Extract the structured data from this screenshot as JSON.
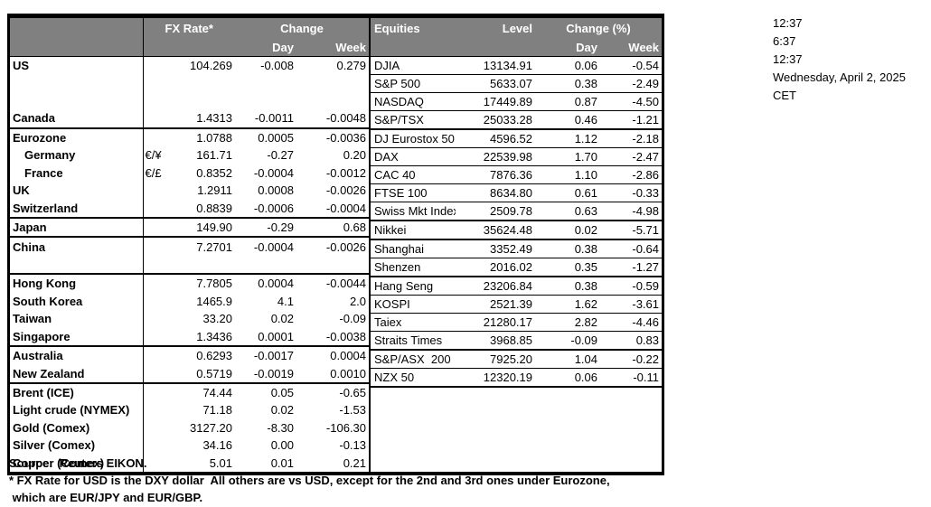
{
  "clock": {
    "times": [
      "12:37",
      "6:37",
      "12:37"
    ],
    "date": "Wednesday, April 2, 2025",
    "timezone": "CET"
  },
  "fx_table": {
    "header": {
      "fx_rate": "FX Rate*",
      "change": "Change",
      "day": "Day",
      "week": "Week"
    },
    "rows": [
      {
        "name": "US",
        "pair": "",
        "rate": "104.269",
        "day": "-0.008",
        "week": "0.279",
        "indent": false,
        "group_end": false
      },
      {
        "name": "",
        "pair": "",
        "rate": "",
        "day": "",
        "week": "",
        "indent": false,
        "group_end": false
      },
      {
        "name": "",
        "pair": "",
        "rate": "",
        "day": "",
        "week": "",
        "indent": false,
        "group_end": false
      },
      {
        "name": "Canada",
        "pair": "",
        "rate": "1.4313",
        "day": "-0.0011",
        "week": "-0.0048",
        "indent": false,
        "group_end": true
      },
      {
        "name": "Eurozone",
        "pair": "",
        "rate": "1.0788",
        "day": "0.0005",
        "week": "-0.0036",
        "indent": false,
        "group_end": false
      },
      {
        "name": "Germany",
        "pair": "€/¥",
        "rate": "161.71",
        "day": "-0.27",
        "week": "0.20",
        "indent": true,
        "group_end": false
      },
      {
        "name": "France",
        "pair": "€/£",
        "rate": "0.8352",
        "day": "-0.0004",
        "week": "-0.0012",
        "indent": true,
        "group_end": false
      },
      {
        "name": "UK",
        "pair": "",
        "rate": "1.2911",
        "day": "0.0008",
        "week": "-0.0026",
        "indent": false,
        "group_end": false
      },
      {
        "name": "Switzerland",
        "pair": "",
        "rate": "0.8839",
        "day": "-0.0006",
        "week": "-0.0004",
        "indent": false,
        "group_end": true
      },
      {
        "name": "Japan",
        "pair": "",
        "rate": "149.90",
        "day": "-0.29",
        "week": "0.68",
        "indent": false,
        "group_end": true
      },
      {
        "name": "China",
        "pair": "",
        "rate": "7.2701",
        "day": "-0.0004",
        "week": "-0.0026",
        "indent": false,
        "group_end": false
      },
      {
        "name": "",
        "pair": "",
        "rate": "",
        "day": "",
        "week": "",
        "indent": false,
        "group_end": true
      },
      {
        "name": "Hong Kong",
        "pair": "",
        "rate": "7.7805",
        "day": "0.0004",
        "week": "-0.0044",
        "indent": false,
        "group_end": false
      },
      {
        "name": "South Korea",
        "pair": "",
        "rate": "1465.9",
        "day": "4.1",
        "week": "2.0",
        "indent": false,
        "group_end": false
      },
      {
        "name": "Taiwan",
        "pair": "",
        "rate": "33.20",
        "day": "0.02",
        "week": "-0.09",
        "indent": false,
        "group_end": false
      },
      {
        "name": "Singapore",
        "pair": "",
        "rate": "1.3436",
        "day": "0.0001",
        "week": "-0.0038",
        "indent": false,
        "group_end": true
      },
      {
        "name": "Australia",
        "pair": "",
        "rate": "0.6293",
        "day": "-0.0017",
        "week": "0.0004",
        "indent": false,
        "group_end": false
      },
      {
        "name": "New Zealand",
        "pair": "",
        "rate": "0.5719",
        "day": "-0.0019",
        "week": "0.0010",
        "indent": false,
        "group_end": true
      },
      {
        "name": "Brent (ICE)",
        "pair": "",
        "rate": "74.44",
        "day": "0.05",
        "week": "-0.65",
        "indent": false,
        "group_end": false
      },
      {
        "name": "Light crude (NYMEX)",
        "pair": "",
        "rate": "71.18",
        "day": "0.02",
        "week": "-1.53",
        "indent": false,
        "group_end": false
      },
      {
        "name": "Gold (Comex)",
        "pair": "",
        "rate": "3127.20",
        "day": "-8.30",
        "week": "-106.30",
        "indent": false,
        "group_end": false
      },
      {
        "name": "Silver (Comex)",
        "pair": "",
        "rate": "34.16",
        "day": "0.00",
        "week": "-0.13",
        "indent": false,
        "group_end": false
      },
      {
        "name": "Copper (Comex)",
        "pair": "",
        "rate": "5.01",
        "day": "0.01",
        "week": "0.21",
        "indent": false,
        "group_end": false
      }
    ]
  },
  "equities_table": {
    "header": {
      "title": "Equities",
      "level": "Level",
      "change_pct": "Change (%)",
      "day": "Day",
      "week": "Week"
    },
    "rows": [
      {
        "name": "DJIA",
        "level": "13134.91",
        "day": "0.06",
        "week": "-0.54",
        "group_end": false
      },
      {
        "name": "S&P 500",
        "level": "5633.07",
        "day": "0.38",
        "week": "-2.49",
        "group_end": false
      },
      {
        "name": "NASDAQ",
        "level": "17449.89",
        "day": "0.87",
        "week": "-4.50",
        "group_end": false
      },
      {
        "name": "S&P/TSX",
        "level": "25033.28",
        "day": "0.46",
        "week": "-1.21",
        "group_end": true
      },
      {
        "name": "DJ Eurostox 50",
        "level": "4596.52",
        "day": "1.12",
        "week": "-2.18",
        "group_end": false
      },
      {
        "name": "DAX",
        "level": "22539.98",
        "day": "1.70",
        "week": "-2.47",
        "group_end": false
      },
      {
        "name": "CAC 40",
        "level": "7876.36",
        "day": "1.10",
        "week": "-2.86",
        "group_end": false
      },
      {
        "name": "FTSE 100",
        "level": "8634.80",
        "day": "0.61",
        "week": "-0.33",
        "group_end": false
      },
      {
        "name": "Swiss Mkt Index",
        "level": "2509.78",
        "day": "0.63",
        "week": "-4.98",
        "group_end": true
      },
      {
        "name": "Nikkei",
        "level": "35624.48",
        "day": "0.02",
        "week": "-5.71",
        "group_end": true
      },
      {
        "name": "Shanghai",
        "level": "3352.49",
        "day": "0.38",
        "week": "-0.64",
        "group_end": false
      },
      {
        "name": "Shenzen",
        "level": "2016.02",
        "day": "0.35",
        "week": "-1.27",
        "group_end": true
      },
      {
        "name": "Hang Seng",
        "level": "23206.84",
        "day": "0.38",
        "week": "-0.59",
        "group_end": false
      },
      {
        "name": "KOSPI",
        "level": "2521.39",
        "day": "1.62",
        "week": "-3.61",
        "group_end": false
      },
      {
        "name": "Taiex",
        "level": "21280.17",
        "day": "2.82",
        "week": "-4.46",
        "group_end": false
      },
      {
        "name": "Straits Times",
        "level": "3968.85",
        "day": "-0.09",
        "week": "0.83",
        "group_end": true
      },
      {
        "name": "S&P/ASX  200",
        "level": "7925.20",
        "day": "1.04",
        "week": "-0.22",
        "group_end": false
      },
      {
        "name": "NZX 50",
        "level": "12320.19",
        "day": "0.06",
        "week": "-0.11",
        "group_end": true
      }
    ]
  },
  "footnotes": {
    "source": "Source:  Reuters EIKON.",
    "note_line1": "* FX Rate for USD is the DXY dollar  All others are vs USD, except for the 2nd and 3rd ones under Eurozone,",
    "note_line2": " which are EUR/JPY and EUR/GBP."
  },
  "colors": {
    "header_bg": "#808080",
    "header_text": "#ffffff",
    "border": "#000000"
  }
}
